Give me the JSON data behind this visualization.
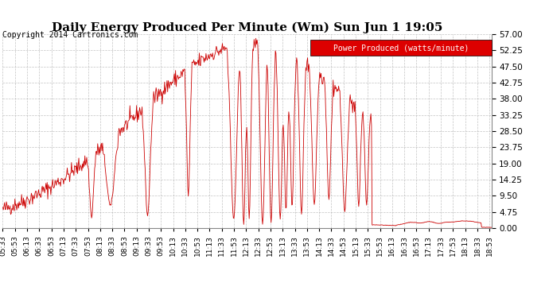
{
  "title": "Daily Energy Produced Per Minute (Wm) Sun Jun 1 19:05",
  "copyright": "Copyright 2014 Cartronics.com",
  "legend_label": "Power Produced (watts/minute)",
  "legend_bg": "#dd0000",
  "legend_text_color": "#ffffff",
  "line_color": "#cc0000",
  "background_color": "#ffffff",
  "grid_color": "#aaaaaa",
  "yticks": [
    0.0,
    4.75,
    9.5,
    14.25,
    19.0,
    23.75,
    28.5,
    33.25,
    38.0,
    42.75,
    47.5,
    52.25,
    57.0
  ],
  "ymax": 57.0,
  "ymin": 0.0,
  "title_fontsize": 11,
  "copyright_fontsize": 7,
  "tick_fontsize": 6.5,
  "ytick_fontsize": 7.5,
  "legend_fontsize": 7
}
